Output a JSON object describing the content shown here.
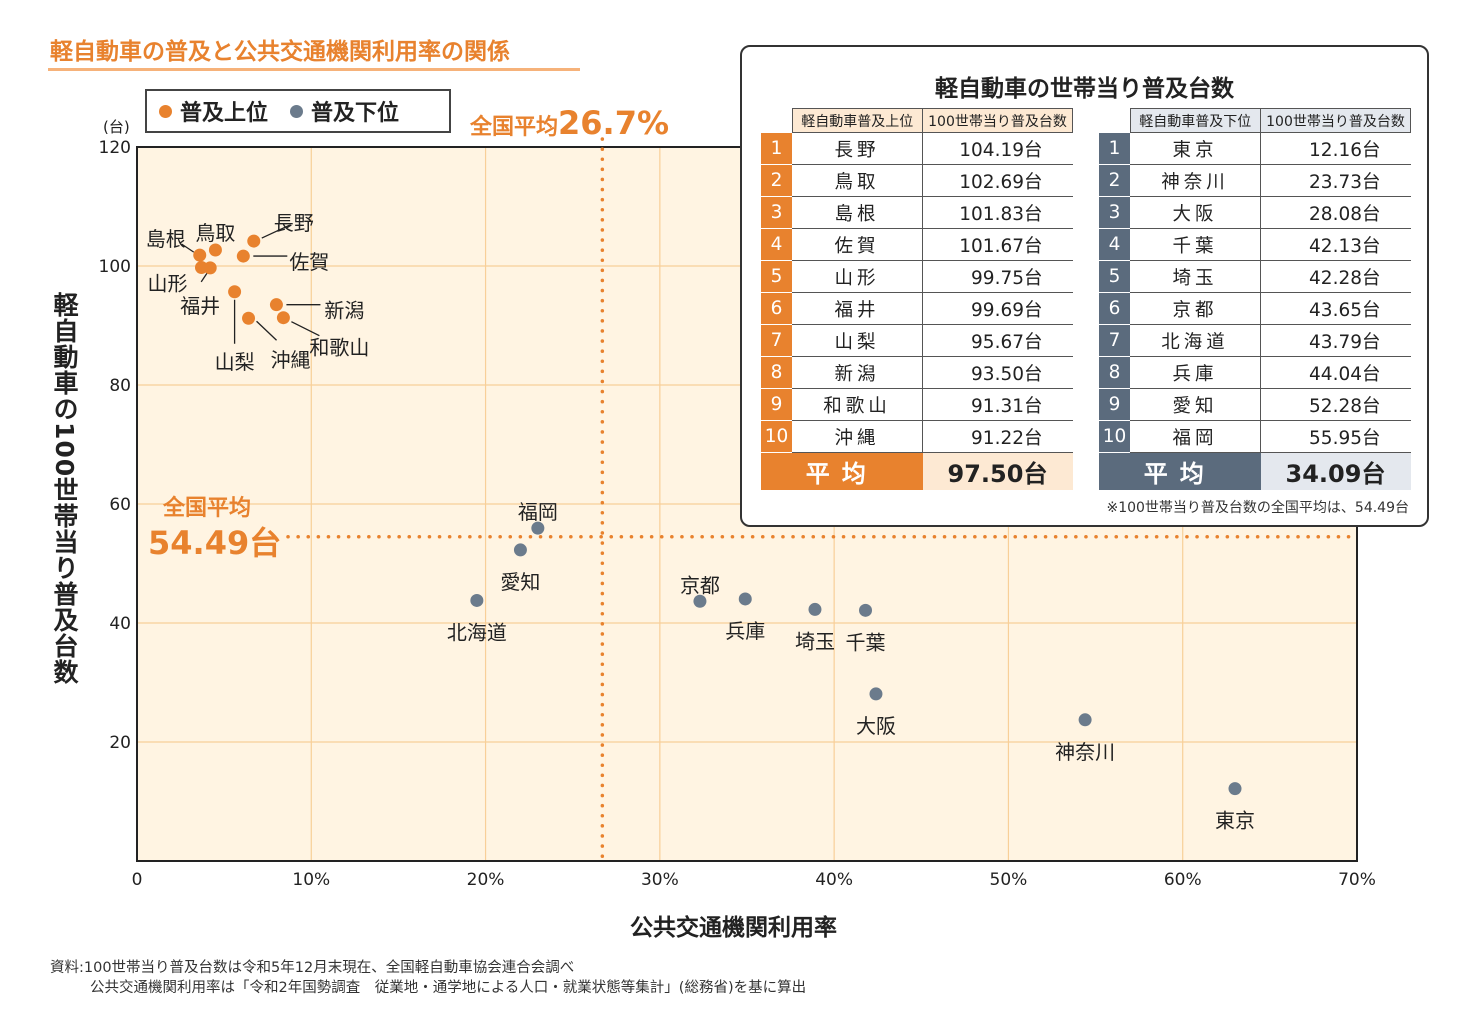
{
  "title": "軽自動車の普及と公共交通機関利用率の関係",
  "legend": {
    "high": "普及上位",
    "low": "普及下位",
    "high_color": "#e8822e",
    "low_color": "#6b7b8c"
  },
  "unit": "(台)",
  "avg_x": {
    "label": "全国平均",
    "value": "26.7%"
  },
  "avg_y": {
    "label": "全国平均",
    "value": "54.49台"
  },
  "ylabel": "軽自動車の100世帯当り普及台数",
  "xlabel": "公共交通機関利用率",
  "source": {
    "line1": "資料:100世帯当り普及台数は令和5年12月末現在、全国軽自動車協会連合会調べ",
    "line2": "公共交通機関利用率は「令和2年国勢調査　従業地・通学地による人口・就業状態等集計」(総務省)を基に算出"
  },
  "chart_data": {
    "type": "scatter",
    "xlim": [
      0,
      70
    ],
    "ylim": [
      0,
      120
    ],
    "x_ticks": [
      0,
      10,
      20,
      30,
      40,
      50,
      60,
      70
    ],
    "x_tick_labels": [
      "0",
      "10%",
      "20%",
      "30%",
      "40%",
      "50%",
      "60%",
      "70%"
    ],
    "y_ticks": [
      20,
      40,
      60,
      80,
      100,
      120
    ],
    "y_tick_labels": [
      "20",
      "40",
      "60",
      "80",
      "100",
      "120"
    ],
    "grid": true,
    "ref_x": 26.7,
    "ref_y": 54.49,
    "series": [
      {
        "name": "普及上位",
        "color": "#e8822e",
        "points": [
          {
            "label": "長野",
            "x": 6.7,
            "y": 104.19
          },
          {
            "label": "鳥取",
            "x": 4.5,
            "y": 102.69
          },
          {
            "label": "島根",
            "x": 3.6,
            "y": 101.83
          },
          {
            "label": "佐賀",
            "x": 6.1,
            "y": 101.67
          },
          {
            "label": "山形",
            "x": 3.7,
            "y": 99.75
          },
          {
            "label": "福井",
            "x": 4.2,
            "y": 99.69
          },
          {
            "label": "山梨",
            "x": 5.6,
            "y": 95.67
          },
          {
            "label": "新潟",
            "x": 8.0,
            "y": 93.5
          },
          {
            "label": "和歌山",
            "x": 8.4,
            "y": 91.31
          },
          {
            "label": "沖縄",
            "x": 6.4,
            "y": 91.22
          }
        ]
      },
      {
        "name": "普及下位",
        "color": "#6b7b8c",
        "points": [
          {
            "label": "東京",
            "x": 63.0,
            "y": 12.16
          },
          {
            "label": "神奈川",
            "x": 54.4,
            "y": 23.73
          },
          {
            "label": "大阪",
            "x": 42.4,
            "y": 28.08
          },
          {
            "label": "千葉",
            "x": 41.8,
            "y": 42.13
          },
          {
            "label": "埼玉",
            "x": 38.9,
            "y": 42.28
          },
          {
            "label": "京都",
            "x": 32.3,
            "y": 43.65
          },
          {
            "label": "北海道",
            "x": 19.5,
            "y": 43.79
          },
          {
            "label": "兵庫",
            "x": 34.9,
            "y": 44.04
          },
          {
            "label": "愛知",
            "x": 22.0,
            "y": 52.28
          },
          {
            "label": "福岡",
            "x": 23.0,
            "y": 55.95
          }
        ]
      }
    ]
  },
  "table": {
    "title": "軽自動車の世帯当り普及台数",
    "high_header": [
      "軽自動車普及上位",
      "100世帯当り普及台数"
    ],
    "low_header": [
      "軽自動車普及下位",
      "100世帯当り普及台数"
    ],
    "high_rows": [
      {
        "rank": "1",
        "pref": "長野",
        "val": "104.19台"
      },
      {
        "rank": "2",
        "pref": "鳥取",
        "val": "102.69台"
      },
      {
        "rank": "3",
        "pref": "島根",
        "val": "101.83台"
      },
      {
        "rank": "4",
        "pref": "佐賀",
        "val": "101.67台"
      },
      {
        "rank": "5",
        "pref": "山形",
        "val": "99.75台"
      },
      {
        "rank": "6",
        "pref": "福井",
        "val": "99.69台"
      },
      {
        "rank": "7",
        "pref": "山梨",
        "val": "95.67台"
      },
      {
        "rank": "8",
        "pref": "新潟",
        "val": "93.50台"
      },
      {
        "rank": "9",
        "pref": "和歌山",
        "val": "91.31台"
      },
      {
        "rank": "10",
        "pref": "沖縄",
        "val": "91.22台"
      }
    ],
    "low_rows": [
      {
        "rank": "1",
        "pref": "東京",
        "val": "12.16台"
      },
      {
        "rank": "2",
        "pref": "神奈川",
        "val": "23.73台"
      },
      {
        "rank": "3",
        "pref": "大阪",
        "val": "28.08台"
      },
      {
        "rank": "4",
        "pref": "千葉",
        "val": "42.13台"
      },
      {
        "rank": "5",
        "pref": "埼玉",
        "val": "42.28台"
      },
      {
        "rank": "6",
        "pref": "京都",
        "val": "43.65台"
      },
      {
        "rank": "7",
        "pref": "北海道",
        "val": "43.79台"
      },
      {
        "rank": "8",
        "pref": "兵庫",
        "val": "44.04台"
      },
      {
        "rank": "9",
        "pref": "愛知",
        "val": "52.28台"
      },
      {
        "rank": "10",
        "pref": "福岡",
        "val": "55.95台"
      }
    ],
    "avg_label": "平均",
    "high_avg": "97.50台",
    "low_avg": "34.09台",
    "note": "※100世帯当り普及台数の全国平均は、54.49台"
  }
}
